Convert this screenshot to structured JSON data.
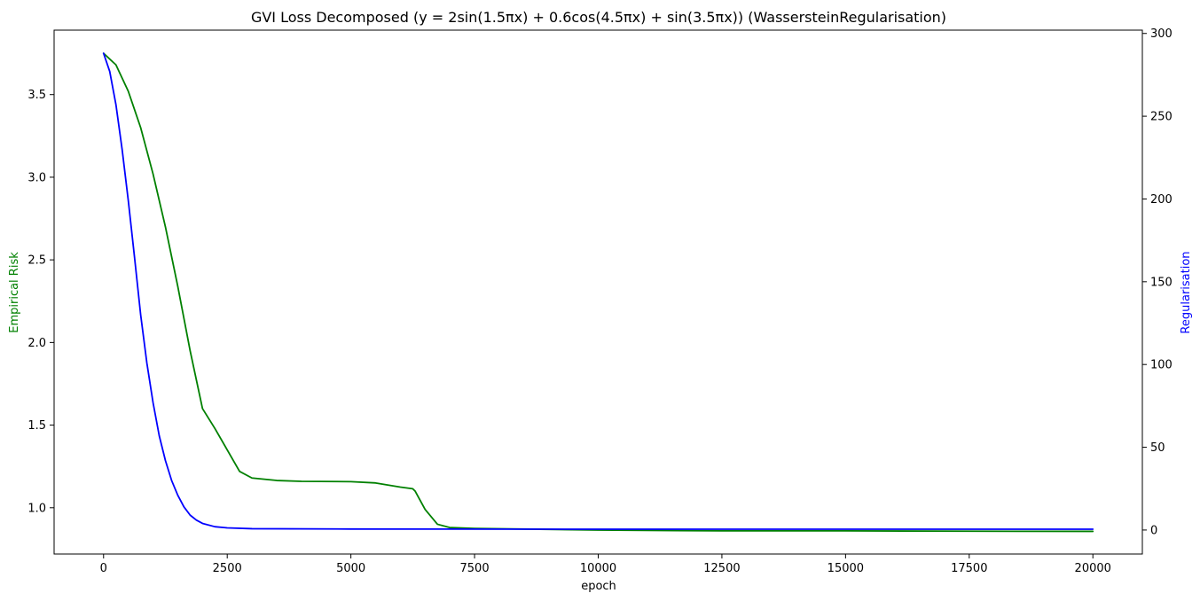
{
  "chart_data": {
    "type": "line",
    "title": "GVI Loss Decomposed (y = 2sin(1.5πx) + 0.6cos(4.5πx) + sin(3.5πx)) (WassersteinRegularisation)",
    "xlabel": "epoch",
    "ylabel_left": "Empirical Risk",
    "ylabel_right": "Regularisation",
    "xlim": [
      -1000,
      21000
    ],
    "ylim_left": [
      0.72,
      3.89
    ],
    "ylim_right": [
      -14.5,
      302
    ],
    "x_ticks": [
      0,
      2500,
      5000,
      7500,
      10000,
      12500,
      15000,
      17500,
      20000
    ],
    "y_left_ticks": [
      1.0,
      1.5,
      2.0,
      2.5,
      3.0,
      3.5
    ],
    "y_right_ticks": [
      0,
      50,
      100,
      150,
      200,
      250,
      300
    ],
    "grid": false,
    "series": [
      {
        "axis": "left",
        "color": "#008000",
        "x": [
          0,
          250,
          500,
          750,
          1000,
          1250,
          1500,
          1750,
          2000,
          2250,
          2500,
          2750,
          3000,
          3500,
          4000,
          5000,
          5500,
          6000,
          6250,
          6300,
          6500,
          6750,
          7000,
          7500,
          10000,
          12500,
          15000,
          17500,
          20000
        ],
        "values": [
          3.75,
          3.68,
          3.52,
          3.3,
          3.02,
          2.7,
          2.34,
          1.95,
          1.6,
          1.48,
          1.35,
          1.22,
          1.18,
          1.165,
          1.16,
          1.158,
          1.15,
          1.125,
          1.115,
          1.1,
          0.99,
          0.9,
          0.88,
          0.875,
          0.865,
          0.86,
          0.86,
          0.858,
          0.857
        ]
      },
      {
        "axis": "right",
        "color": "#0000ff",
        "x": [
          0,
          125,
          250,
          375,
          500,
          625,
          750,
          875,
          1000,
          1125,
          1250,
          1375,
          1500,
          1625,
          1750,
          1875,
          2000,
          2250,
          2500,
          3000,
          5000,
          10000,
          15000,
          20000
        ],
        "values": [
          288,
          277,
          257,
          230,
          199,
          165,
          130,
          101,
          77,
          57,
          42,
          30,
          21,
          14,
          9,
          6,
          4,
          2,
          1.3,
          0.8,
          0.6,
          0.5,
          0.5,
          0.5
        ]
      }
    ]
  },
  "labels": {
    "title": "GVI Loss Decomposed (y = 2sin(1.5πx) + 0.6cos(4.5πx) + sin(3.5πx)) (WassersteinRegularisation)",
    "xlabel": "epoch",
    "ylabel_left": "Empirical Risk",
    "ylabel_right": "Regularisation"
  },
  "colors": {
    "left_axis_label": "#008000",
    "right_axis_label": "#0000ff"
  }
}
